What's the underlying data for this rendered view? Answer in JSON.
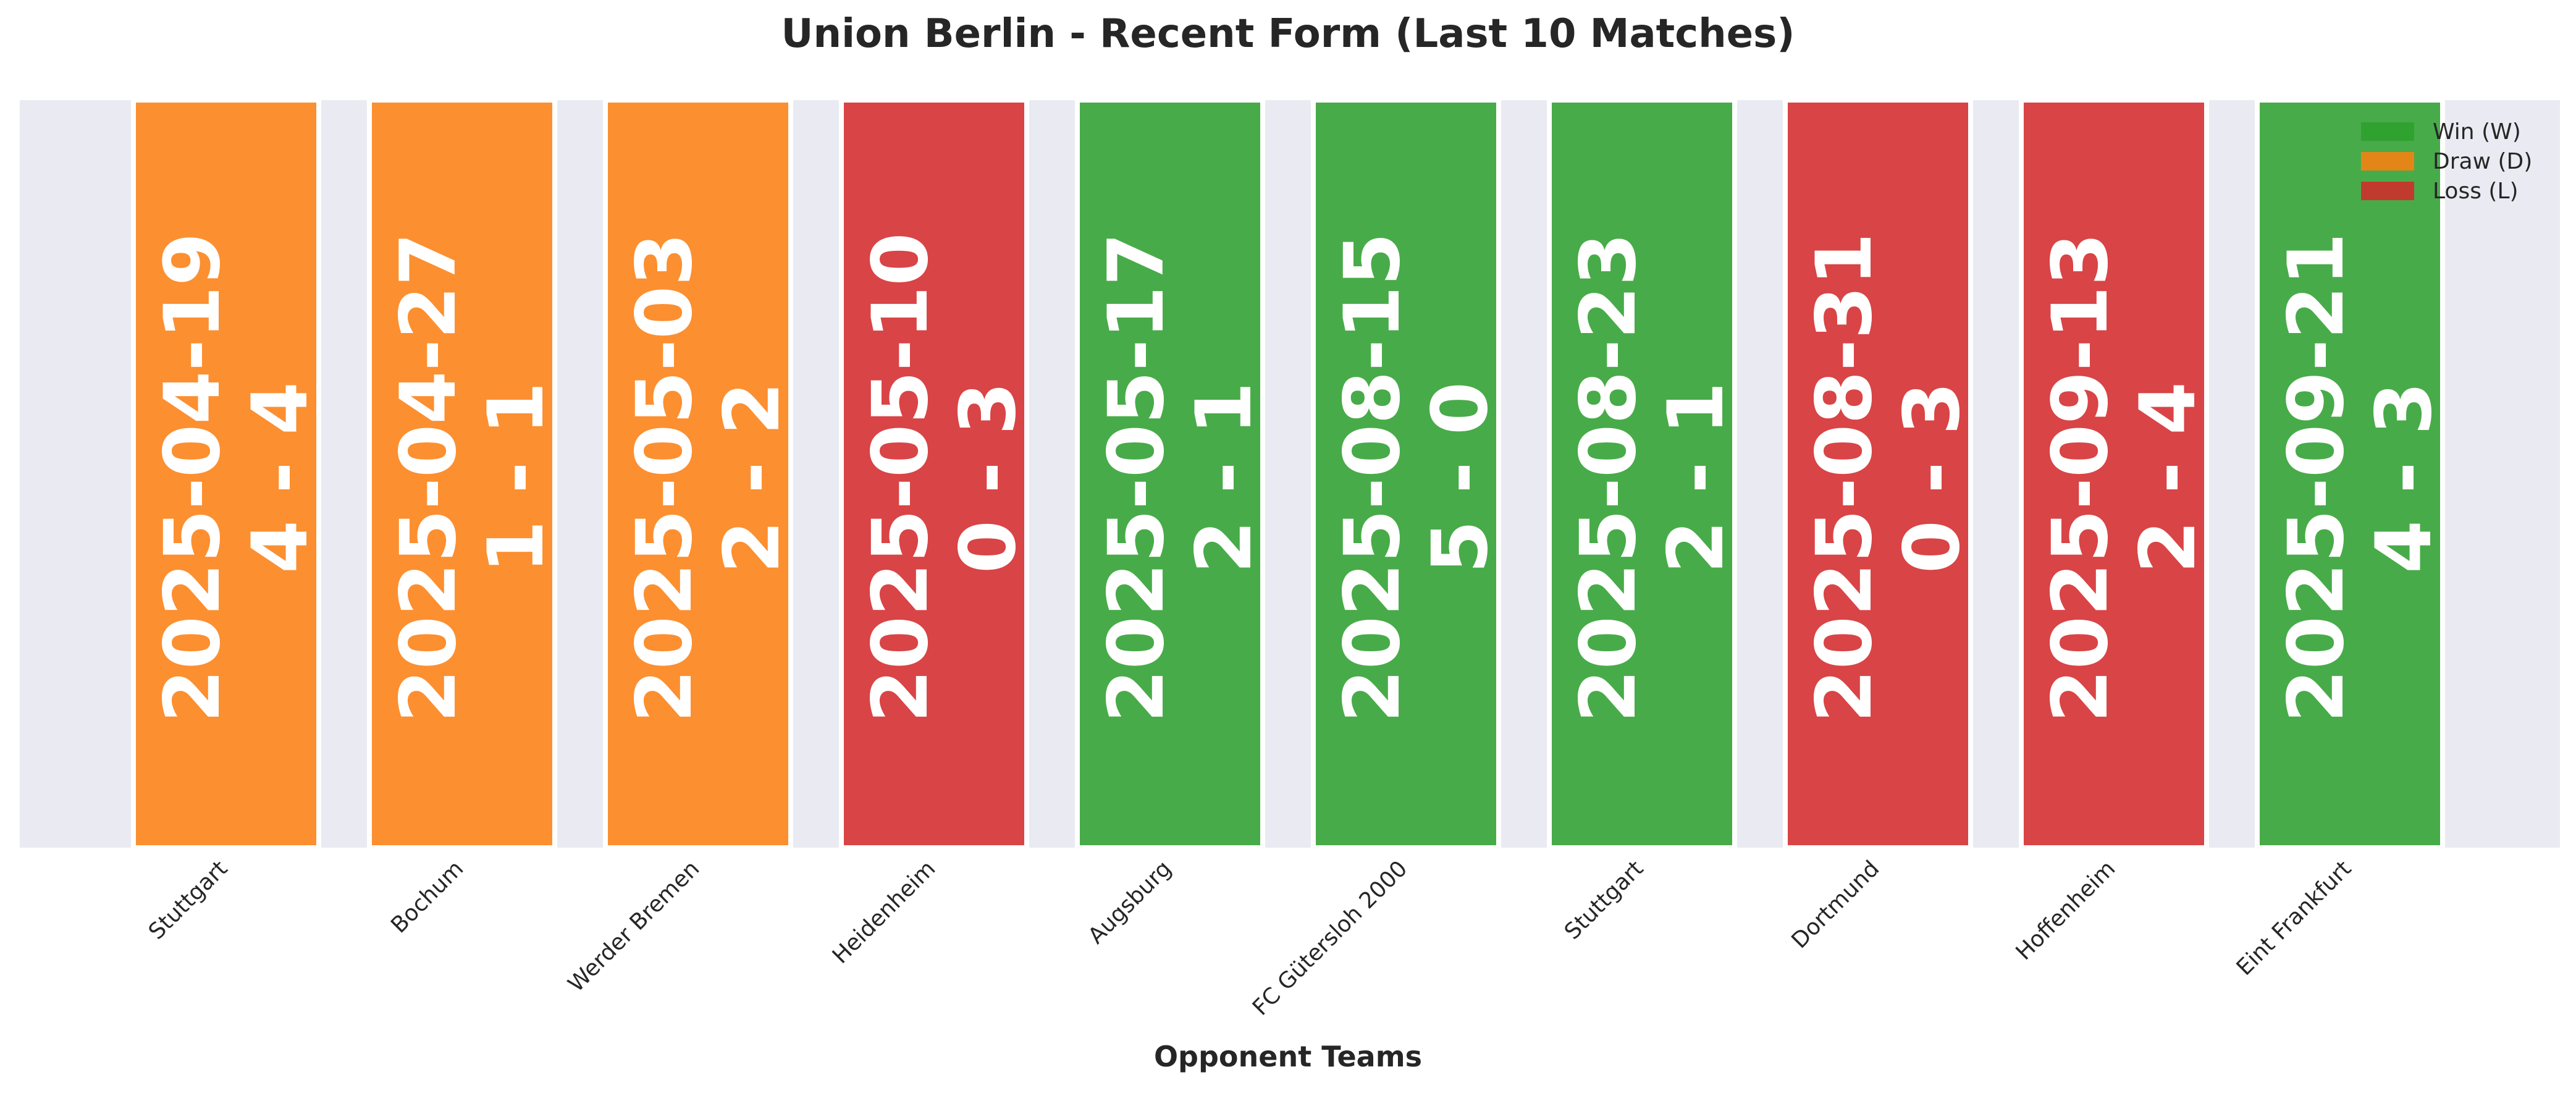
{
  "chart_data": {
    "type": "bar",
    "title": "Union Berlin - Recent Form (Last 10 Matches)",
    "xlabel": "Opponent Teams",
    "ylabel": "",
    "ylim": [
      0,
      1
    ],
    "grid": false,
    "legend_position": "top-right",
    "categories": [
      "Stuttgart",
      "Bochum",
      "Werder Bremen",
      "Heidenheim",
      "Augsburg",
      "FC Gütersloh 2000",
      "Stuttgart",
      "Dortmund",
      "Hoffenheim",
      "Eint Frankfurt"
    ],
    "values": [
      1,
      1,
      1,
      1,
      1,
      1,
      1,
      1,
      1,
      1
    ],
    "dates": [
      "2025-04-19",
      "2025-04-27",
      "2025-05-03",
      "2025-05-10",
      "2025-05-17",
      "2025-08-15",
      "2025-08-23",
      "2025-08-31",
      "2025-09-13",
      "2025-09-21"
    ],
    "scores": [
      "4 - 4",
      "1 - 1",
      "2 - 2",
      "0 - 3",
      "2 - 1",
      "5 - 0",
      "2 - 1",
      "0 - 3",
      "2 - 4",
      "4 - 3"
    ],
    "results": [
      "D",
      "D",
      "D",
      "L",
      "W",
      "W",
      "W",
      "L",
      "L",
      "W"
    ],
    "legend": [
      {
        "key": "W",
        "label": "Win (W)",
        "color": "#2ca02c"
      },
      {
        "key": "D",
        "label": "Draw (D)",
        "color": "#ff7f0e"
      },
      {
        "key": "L",
        "label": "Loss (L)",
        "color": "#d62728"
      }
    ],
    "colors": {
      "W": "#2ca02c",
      "D": "#ff7f0e",
      "L": "#d62728"
    },
    "plot_background": "#eaeaf2"
  }
}
